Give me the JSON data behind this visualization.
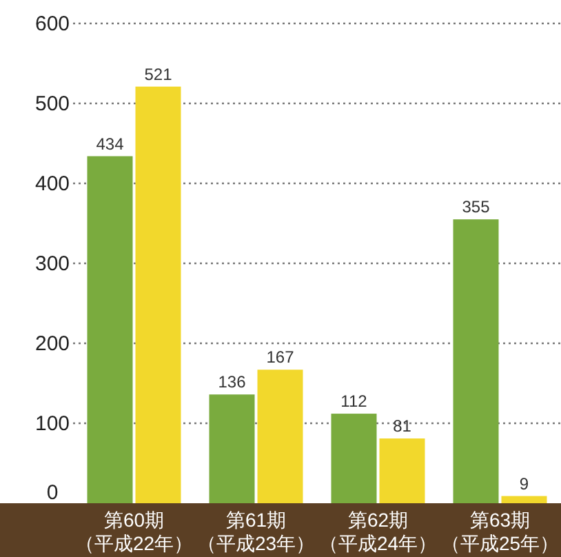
{
  "chart_data": {
    "type": "bar",
    "categories": [
      "第60期（平成22年）",
      "第61期（平成23年）",
      "第62期（平成24年）",
      "第63期（平成25年）"
    ],
    "series": [
      {
        "color": "#7aab3e",
        "values": [
          434,
          136,
          112,
          355
        ]
      },
      {
        "color": "#f2d82c",
        "values": [
          521,
          167,
          81,
          9
        ]
      }
    ],
    "ylim": [
      0,
      600
    ],
    "yticks": [
      0,
      100,
      200,
      300,
      400,
      500,
      600
    ],
    "grid": "y",
    "data_labels": true
  }
}
